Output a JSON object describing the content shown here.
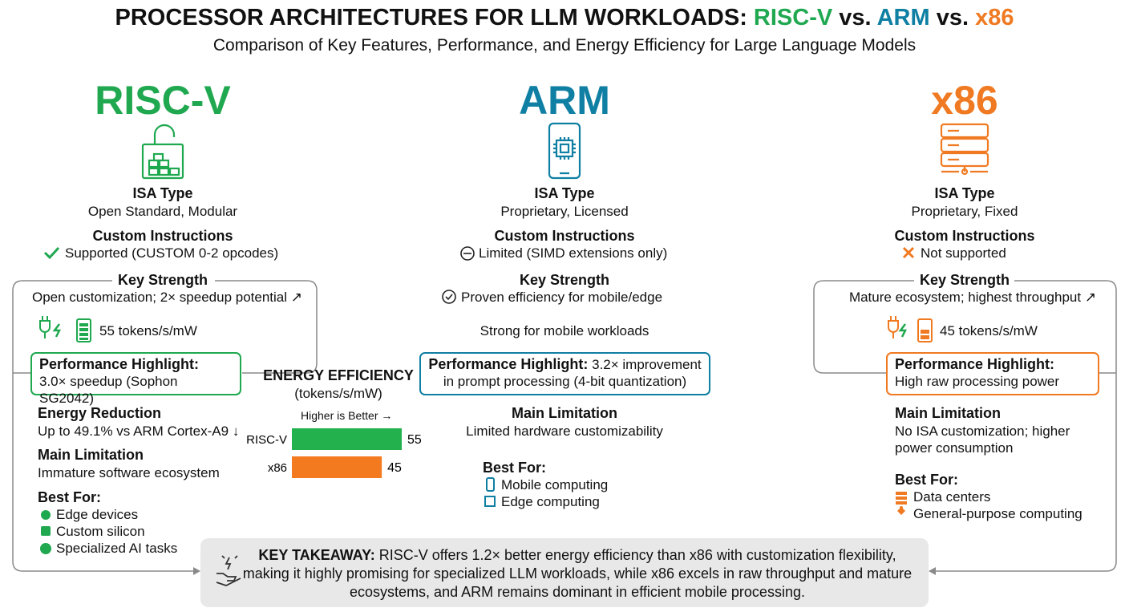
{
  "header": {
    "title": [
      "PROCESSOR ARCHITECTURES FOR LLM WORKLOADS:",
      "RISC-V",
      "vs.",
      "ARM",
      "vs.",
      "x86"
    ],
    "subtitle": "Comparison of Key Features, Performance, and Energy Efficiency for Large Language Models"
  },
  "columns": [
    {
      "name": "RISC-V",
      "isa_label": "ISA Type",
      "isa_value": "Open Standard, Modular",
      "custom_label": "Custom Instructions",
      "custom_value": "Supported (CUSTOM 0-2 opcodes)",
      "strength_label": "Key Strength",
      "strength_value": "Open customization; 2× speedup potential ↗",
      "energy": "55 tokens/s/mW",
      "perf_label": "Performance Highlight:",
      "perf_text": "3.0× speedup (Sophon SG2042)",
      "reduction_label": "Energy Reduction",
      "reduction_value": "Up to 49.1% vs ARM Cortex-A9 ↓",
      "limit_label": "Main Limitation",
      "limit_value": "Immature software ecosystem",
      "best_label": "Best For:",
      "best_for": [
        "Edge devices",
        "Custom silicon",
        "Specialized AI tasks"
      ]
    },
    {
      "name": "ARM",
      "isa_label": "ISA Type",
      "isa_value": "Proprietary, Licensed",
      "custom_label": "Custom Instructions",
      "custom_value": "Limited (SIMD extensions only)",
      "strength_label": "Key Strength",
      "strength_value": "Proven efficiency for mobile/edge",
      "energy": "Strong for mobile workloads",
      "perf_label": "Performance Highlight:",
      "perf_text": "3.2× improvement in prompt processing (4-bit quantization)",
      "limit_label": "Main Limitation",
      "limit_value": "Limited hardware customizability",
      "best_label": "Best For:",
      "best_for": [
        "Mobile computing",
        "Edge computing"
      ]
    },
    {
      "name": "x86",
      "isa_label": "ISA Type",
      "isa_value": "Proprietary, Fixed",
      "custom_label": "Custom Instructions",
      "custom_value": "Not supported",
      "strength_label": "Key Strength",
      "strength_value": "Mature ecosystem; highest throughput ↗",
      "energy": "45 tokens/s/mW",
      "perf_label": "Performance Highlight:",
      "perf_text": "High raw processing power",
      "limit_label": "Main Limitation",
      "limit_value": "No ISA customization; higher power consumption",
      "best_label": "Best For:",
      "best_for": [
        "Data centers",
        "General-purpose computing"
      ]
    }
  ],
  "chart_data": {
    "type": "bar",
    "orientation": "horizontal",
    "title": "ENERGY EFFICIENCY",
    "subtitle": "(tokens/s/mW)",
    "note": "Higher is Better →",
    "categories": [
      "RISC-V",
      "x86"
    ],
    "values": [
      55,
      45
    ],
    "colors": [
      "#22b14c",
      "#f47a20"
    ]
  },
  "takeaway": {
    "label": "KEY TAKEAWAY:",
    "text": "RISC-V offers 1.2× better energy efficiency than x86 with customization flexibility, making it highly promising for specialized LLM workloads, while x86 excels in raw throughput and mature ecosystems, and ARM remains dominant in efficient mobile processing."
  }
}
